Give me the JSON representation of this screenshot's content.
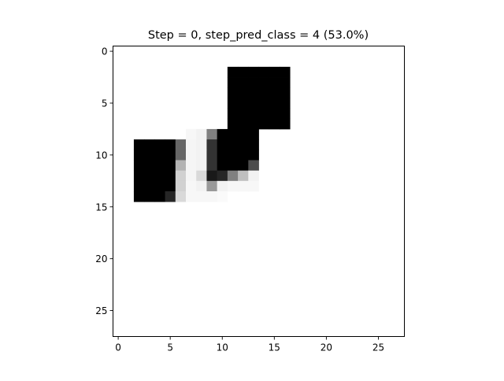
{
  "chart_data": {
    "type": "heatmap",
    "title": "Step = 0, step_pred_class = 4 (53.0%)",
    "xlabel": "",
    "ylabel": "",
    "xlim": [
      -0.5,
      27.5
    ],
    "ylim": [
      27.5,
      -0.5
    ],
    "x_ticks": [
      0,
      5,
      10,
      15,
      20,
      25
    ],
    "y_ticks": [
      0,
      5,
      10,
      15,
      20,
      25
    ],
    "x_tick_labels": [
      "0",
      "5",
      "10",
      "15",
      "20",
      "25"
    ],
    "y_tick_labels": [
      "0",
      "5",
      "10",
      "15",
      "20",
      "25"
    ],
    "colormap": "gray_r",
    "value_range": [
      0,
      1
    ],
    "grid": false,
    "rows": 28,
    "cols": 28,
    "cells": [
      {
        "r": 2,
        "c": 11,
        "v": 1.0
      },
      {
        "r": 2,
        "c": 12,
        "v": 1.0
      },
      {
        "r": 2,
        "c": 13,
        "v": 1.0
      },
      {
        "r": 2,
        "c": 14,
        "v": 1.0
      },
      {
        "r": 2,
        "c": 15,
        "v": 1.0
      },
      {
        "r": 2,
        "c": 16,
        "v": 1.0
      },
      {
        "r": 3,
        "c": 11,
        "v": 1.0
      },
      {
        "r": 3,
        "c": 12,
        "v": 1.0
      },
      {
        "r": 3,
        "c": 13,
        "v": 1.0
      },
      {
        "r": 3,
        "c": 14,
        "v": 1.0
      },
      {
        "r": 3,
        "c": 15,
        "v": 1.0
      },
      {
        "r": 3,
        "c": 16,
        "v": 1.0
      },
      {
        "r": 4,
        "c": 11,
        "v": 1.0
      },
      {
        "r": 4,
        "c": 12,
        "v": 1.0
      },
      {
        "r": 4,
        "c": 13,
        "v": 1.0
      },
      {
        "r": 4,
        "c": 14,
        "v": 1.0
      },
      {
        "r": 4,
        "c": 15,
        "v": 1.0
      },
      {
        "r": 4,
        "c": 16,
        "v": 1.0
      },
      {
        "r": 5,
        "c": 11,
        "v": 1.0
      },
      {
        "r": 5,
        "c": 12,
        "v": 1.0
      },
      {
        "r": 5,
        "c": 13,
        "v": 1.0
      },
      {
        "r": 5,
        "c": 14,
        "v": 1.0
      },
      {
        "r": 5,
        "c": 15,
        "v": 1.0
      },
      {
        "r": 5,
        "c": 16,
        "v": 1.0
      },
      {
        "r": 6,
        "c": 11,
        "v": 1.0
      },
      {
        "r": 6,
        "c": 12,
        "v": 1.0
      },
      {
        "r": 6,
        "c": 13,
        "v": 1.0
      },
      {
        "r": 6,
        "c": 14,
        "v": 1.0
      },
      {
        "r": 6,
        "c": 15,
        "v": 1.0
      },
      {
        "r": 6,
        "c": 16,
        "v": 1.0
      },
      {
        "r": 7,
        "c": 11,
        "v": 1.0
      },
      {
        "r": 7,
        "c": 12,
        "v": 1.0
      },
      {
        "r": 7,
        "c": 13,
        "v": 1.0
      },
      {
        "r": 7,
        "c": 14,
        "v": 1.0
      },
      {
        "r": 7,
        "c": 15,
        "v": 1.0
      },
      {
        "r": 7,
        "c": 16,
        "v": 1.0
      },
      {
        "r": 8,
        "c": 7,
        "v": 0.03
      },
      {
        "r": 8,
        "c": 8,
        "v": 0.05
      },
      {
        "r": 8,
        "c": 9,
        "v": 0.5
      },
      {
        "r": 8,
        "c": 10,
        "v": 1.0
      },
      {
        "r": 8,
        "c": 11,
        "v": 1.0
      },
      {
        "r": 8,
        "c": 12,
        "v": 1.0
      },
      {
        "r": 8,
        "c": 13,
        "v": 1.0
      },
      {
        "r": 9,
        "c": 2,
        "v": 1.0
      },
      {
        "r": 9,
        "c": 3,
        "v": 1.0
      },
      {
        "r": 9,
        "c": 4,
        "v": 1.0
      },
      {
        "r": 9,
        "c": 5,
        "v": 1.0
      },
      {
        "r": 9,
        "c": 6,
        "v": 0.6
      },
      {
        "r": 9,
        "c": 7,
        "v": 0.04
      },
      {
        "r": 9,
        "c": 8,
        "v": 0.05
      },
      {
        "r": 9,
        "c": 9,
        "v": 0.8
      },
      {
        "r": 9,
        "c": 10,
        "v": 1.0
      },
      {
        "r": 9,
        "c": 11,
        "v": 1.0
      },
      {
        "r": 9,
        "c": 12,
        "v": 1.0
      },
      {
        "r": 9,
        "c": 13,
        "v": 1.0
      },
      {
        "r": 10,
        "c": 2,
        "v": 1.0
      },
      {
        "r": 10,
        "c": 3,
        "v": 1.0
      },
      {
        "r": 10,
        "c": 4,
        "v": 1.0
      },
      {
        "r": 10,
        "c": 5,
        "v": 1.0
      },
      {
        "r": 10,
        "c": 6,
        "v": 0.6
      },
      {
        "r": 10,
        "c": 7,
        "v": 0.04
      },
      {
        "r": 10,
        "c": 8,
        "v": 0.05
      },
      {
        "r": 10,
        "c": 9,
        "v": 0.8
      },
      {
        "r": 10,
        "c": 10,
        "v": 1.0
      },
      {
        "r": 10,
        "c": 11,
        "v": 1.0
      },
      {
        "r": 10,
        "c": 12,
        "v": 1.0
      },
      {
        "r": 10,
        "c": 13,
        "v": 1.0
      },
      {
        "r": 11,
        "c": 2,
        "v": 1.0
      },
      {
        "r": 11,
        "c": 3,
        "v": 1.0
      },
      {
        "r": 11,
        "c": 4,
        "v": 1.0
      },
      {
        "r": 11,
        "c": 5,
        "v": 1.0
      },
      {
        "r": 11,
        "c": 6,
        "v": 0.3
      },
      {
        "r": 11,
        "c": 7,
        "v": 0.04
      },
      {
        "r": 11,
        "c": 8,
        "v": 0.05
      },
      {
        "r": 11,
        "c": 9,
        "v": 0.8
      },
      {
        "r": 11,
        "c": 10,
        "v": 1.0
      },
      {
        "r": 11,
        "c": 11,
        "v": 1.0
      },
      {
        "r": 11,
        "c": 12,
        "v": 1.0
      },
      {
        "r": 11,
        "c": 13,
        "v": 0.7
      },
      {
        "r": 12,
        "c": 2,
        "v": 1.0
      },
      {
        "r": 12,
        "c": 3,
        "v": 1.0
      },
      {
        "r": 12,
        "c": 4,
        "v": 1.0
      },
      {
        "r": 12,
        "c": 5,
        "v": 1.0
      },
      {
        "r": 12,
        "c": 6,
        "v": 0.18
      },
      {
        "r": 12,
        "c": 7,
        "v": 0.04
      },
      {
        "r": 12,
        "c": 8,
        "v": 0.15
      },
      {
        "r": 12,
        "c": 9,
        "v": 0.9
      },
      {
        "r": 12,
        "c": 10,
        "v": 0.85
      },
      {
        "r": 12,
        "c": 11,
        "v": 0.5
      },
      {
        "r": 12,
        "c": 12,
        "v": 0.25
      },
      {
        "r": 12,
        "c": 13,
        "v": 0.05
      },
      {
        "r": 13,
        "c": 2,
        "v": 1.0
      },
      {
        "r": 13,
        "c": 3,
        "v": 1.0
      },
      {
        "r": 13,
        "c": 4,
        "v": 1.0
      },
      {
        "r": 13,
        "c": 5,
        "v": 1.0
      },
      {
        "r": 13,
        "c": 6,
        "v": 0.18
      },
      {
        "r": 13,
        "c": 7,
        "v": 0.03
      },
      {
        "r": 13,
        "c": 8,
        "v": 0.05
      },
      {
        "r": 13,
        "c": 9,
        "v": 0.4
      },
      {
        "r": 13,
        "c": 10,
        "v": 0.05
      },
      {
        "r": 13,
        "c": 11,
        "v": 0.03
      },
      {
        "r": 13,
        "c": 12,
        "v": 0.03
      },
      {
        "r": 13,
        "c": 13,
        "v": 0.03
      },
      {
        "r": 14,
        "c": 2,
        "v": 1.0
      },
      {
        "r": 14,
        "c": 3,
        "v": 1.0
      },
      {
        "r": 14,
        "c": 4,
        "v": 1.0
      },
      {
        "r": 14,
        "c": 5,
        "v": 0.85
      },
      {
        "r": 14,
        "c": 6,
        "v": 0.15
      },
      {
        "r": 14,
        "c": 7,
        "v": 0.03
      },
      {
        "r": 14,
        "c": 8,
        "v": 0.03
      },
      {
        "r": 14,
        "c": 9,
        "v": 0.03
      },
      {
        "r": 14,
        "c": 10,
        "v": 0.02
      }
    ]
  }
}
